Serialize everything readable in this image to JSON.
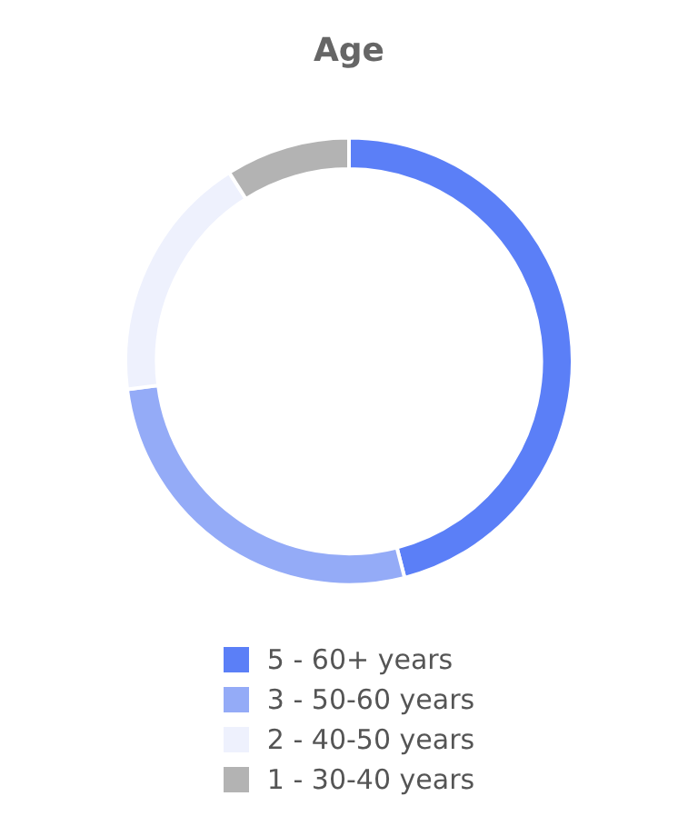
{
  "chart_data": {
    "type": "donut",
    "title": "Age",
    "categories": [
      "5 - 60+ years",
      "3 - 50-60 years",
      "2 - 40-50 years",
      "1 - 30-40 years"
    ],
    "values": [
      46,
      27,
      18,
      9
    ],
    "colors": [
      "#5b7ff7",
      "#94abf7",
      "#eef1fd",
      "#b3b3b3"
    ],
    "legend": "bottom"
  }
}
